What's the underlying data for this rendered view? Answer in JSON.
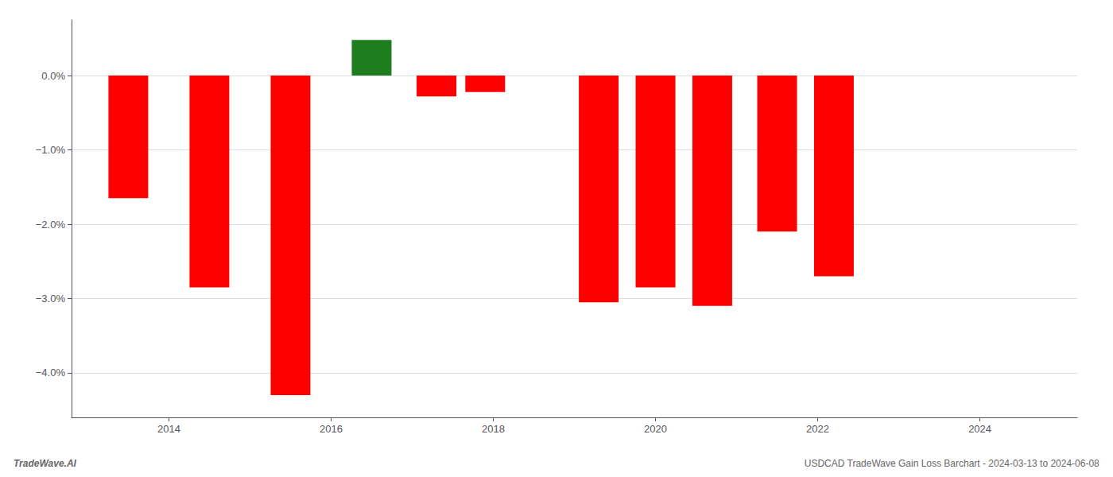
{
  "chart_data": {
    "type": "bar",
    "title": "USDCAD TradeWave Gain Loss Barchart - 2024-03-13 to 2024-06-08",
    "annotations": [
      "TradeWave.AI"
    ],
    "x": [
      2013.5,
      2014.5,
      2015.5,
      2016.5,
      2017.3,
      2017.9,
      2019.3,
      2020.0,
      2020.7,
      2021.5,
      2022.2,
      2023.0,
      2023.7
    ],
    "values": [
      -1.65,
      -2.85,
      -4.3,
      0.48,
      -0.28,
      -0.22,
      -3.05,
      -2.85,
      -3.1,
      -2.1,
      -2.7,
      -0.0,
      -0.0
    ],
    "colors": [
      "#ff0000",
      "#ff0000",
      "#ff0000",
      "#1e7e1e",
      "#ff0000",
      "#ff0000",
      "#ff0000",
      "#ff0000",
      "#ff0000",
      "#ff0000",
      "#ff0000",
      "#ff0000",
      "#ff0000"
    ],
    "xlim": [
      2012.8,
      2025.2
    ],
    "xticks": [
      2014,
      2016,
      2018,
      2020,
      2022,
      2024
    ],
    "ylim": [
      -4.6,
      0.75
    ],
    "yticks": [
      {
        "value": 0.0,
        "label": "0.0%"
      },
      {
        "value": -1.0,
        "label": "−1.0%"
      },
      {
        "value": -2.0,
        "label": "−2.0%"
      },
      {
        "value": -3.0,
        "label": "−3.0%"
      },
      {
        "value": -4.0,
        "label": "−4.0%"
      }
    ],
    "grid": true
  }
}
